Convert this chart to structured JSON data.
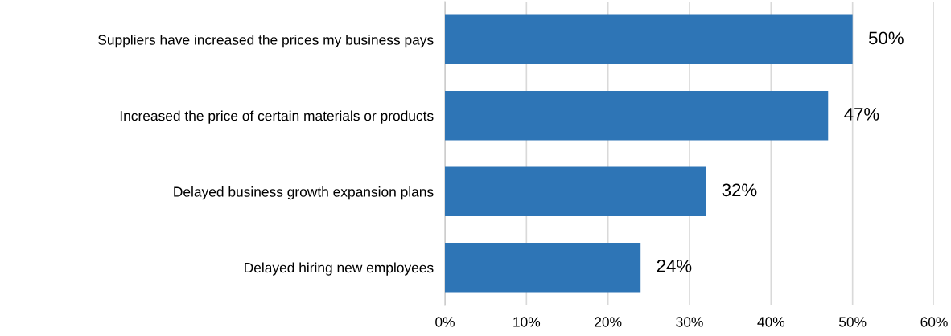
{
  "chart_data": {
    "type": "bar",
    "orientation": "horizontal",
    "categories": [
      "Suppliers have increased the prices my business pays",
      "Increased the price of certain materials or products",
      "Delayed business growth expansion plans",
      "Delayed hiring new employees"
    ],
    "values": [
      50,
      47,
      32,
      24
    ],
    "value_labels": [
      "50%",
      "47%",
      "32%",
      "24%"
    ],
    "color": "#2e75b6",
    "xlim": [
      0,
      60
    ],
    "xticks": [
      {
        "value": 0,
        "label": "0%"
      },
      {
        "value": 10,
        "label": "10%"
      },
      {
        "value": 20,
        "label": "20%"
      },
      {
        "value": 30,
        "label": "30%"
      },
      {
        "value": 40,
        "label": "40%"
      },
      {
        "value": 50,
        "label": "50%"
      },
      {
        "value": 60,
        "label": "60%"
      }
    ],
    "grid": "x",
    "legend": false
  }
}
